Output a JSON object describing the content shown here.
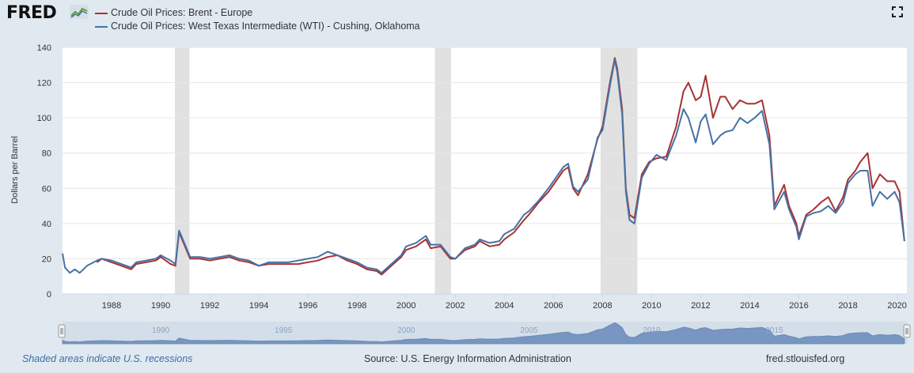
{
  "header": {
    "logo": "FRED",
    "legend": [
      {
        "label": "Crude Oil Prices: Brent - Europe",
        "color": "#a83232"
      },
      {
        "label": "Crude Oil Prices: West Texas Intermediate (WTI) - Cushing, Oklahoma",
        "color": "#4572a7"
      }
    ],
    "fullscreen_icon": "expand-icon"
  },
  "footer": {
    "recession_note": "Shaded areas indicate U.S. recessions",
    "source": "Source: U.S. Energy Information Administration",
    "site": "fred.stlouisfed.org"
  },
  "navigator": {
    "labels": [
      "1990",
      "1995",
      "2000",
      "2005",
      "2010",
      "2015"
    ]
  },
  "chart_data": {
    "type": "line",
    "title": "",
    "xlabel": "",
    "ylabel": "Dollars per Barrel",
    "xlim": [
      1986.0,
      2020.4
    ],
    "ylim": [
      0,
      140
    ],
    "yticks": [
      0,
      20,
      40,
      60,
      80,
      100,
      120,
      140
    ],
    "xticks": [
      "1988",
      "1990",
      "1992",
      "1994",
      "1996",
      "1998",
      "2000",
      "2002",
      "2004",
      "2006",
      "2008",
      "2010",
      "2012",
      "2014",
      "2016",
      "2018",
      "2020"
    ],
    "grid": "horizontal",
    "recessions": [
      [
        1990.58,
        1991.17
      ],
      [
        2001.17,
        2001.83
      ],
      [
        2007.92,
        2009.42
      ]
    ],
    "series": [
      {
        "name": "Crude Oil Prices: Brent - Europe",
        "color": "#a83232",
        "x": [
          1987.4,
          1987.6,
          1988.0,
          1988.4,
          1988.8,
          1989.0,
          1989.4,
          1989.8,
          1990.0,
          1990.4,
          1990.6,
          1990.75,
          1990.9,
          1991.2,
          1991.6,
          1992.0,
          1992.4,
          1992.8,
          1993.2,
          1993.6,
          1994.0,
          1994.4,
          1994.8,
          1995.2,
          1995.6,
          1996.0,
          1996.4,
          1996.8,
          1997.2,
          1997.6,
          1998.0,
          1998.4,
          1998.8,
          1999.0,
          1999.4,
          1999.8,
          2000.0,
          2000.4,
          2000.8,
          2001.0,
          2001.4,
          2001.8,
          2002.0,
          2002.4,
          2002.8,
          2003.0,
          2003.4,
          2003.8,
          2004.0,
          2004.4,
          2004.8,
          2005.0,
          2005.4,
          2005.8,
          2006.0,
          2006.4,
          2006.6,
          2006.8,
          2007.0,
          2007.4,
          2007.8,
          2008.0,
          2008.3,
          2008.5,
          2008.6,
          2008.8,
          2008.95,
          2009.1,
          2009.3,
          2009.6,
          2009.9,
          2010.2,
          2010.6,
          2011.0,
          2011.3,
          2011.5,
          2011.8,
          2012.0,
          2012.2,
          2012.5,
          2012.8,
          2013.0,
          2013.3,
          2013.6,
          2013.9,
          2014.2,
          2014.5,
          2014.8,
          2015.0,
          2015.4,
          2015.6,
          2015.9,
          2016.0,
          2016.3,
          2016.6,
          2016.9,
          2017.2,
          2017.5,
          2017.8,
          2018.0,
          2018.3,
          2018.5,
          2018.8,
          2019.0,
          2019.3,
          2019.6,
          2019.9,
          2020.1,
          2020.3
        ],
        "values": [
          18,
          20,
          18,
          16,
          14,
          17,
          18,
          19,
          21,
          17,
          16,
          35,
          30,
          20,
          20,
          19,
          20,
          21,
          19,
          18,
          16,
          17,
          17,
          17,
          17,
          18,
          19,
          21,
          22,
          19,
          17,
          14,
          13,
          11,
          16,
          21,
          25,
          27,
          31,
          26,
          27,
          20,
          20,
          25,
          27,
          30,
          27,
          28,
          31,
          35,
          42,
          45,
          52,
          58,
          62,
          70,
          72,
          60,
          56,
          68,
          88,
          95,
          120,
          134,
          128,
          105,
          60,
          45,
          43,
          68,
          75,
          77,
          78,
          95,
          115,
          120,
          110,
          112,
          124,
          100,
          112,
          112,
          105,
          110,
          108,
          108,
          110,
          90,
          50,
          62,
          50,
          40,
          33,
          45,
          48,
          52,
          55,
          47,
          55,
          65,
          70,
          75,
          80,
          60,
          68,
          64,
          64,
          58,
          30
        ]
      },
      {
        "name": "Crude Oil Prices: West Texas Intermediate (WTI) - Cushing, Oklahoma",
        "color": "#4572a7",
        "x": [
          1986.0,
          1986.1,
          1986.3,
          1986.5,
          1986.7,
          1987.0,
          1987.4,
          1987.6,
          1988.0,
          1988.4,
          1988.8,
          1989.0,
          1989.4,
          1989.8,
          1990.0,
          1990.4,
          1990.6,
          1990.75,
          1990.9,
          1991.2,
          1991.6,
          1992.0,
          1992.4,
          1992.8,
          1993.2,
          1993.6,
          1994.0,
          1994.4,
          1994.8,
          1995.2,
          1995.6,
          1996.0,
          1996.4,
          1996.8,
          1997.2,
          1997.6,
          1998.0,
          1998.4,
          1998.8,
          1999.0,
          1999.4,
          1999.8,
          2000.0,
          2000.4,
          2000.8,
          2001.0,
          2001.4,
          2001.8,
          2002.0,
          2002.4,
          2002.8,
          2003.0,
          2003.4,
          2003.8,
          2004.0,
          2004.4,
          2004.8,
          2005.0,
          2005.4,
          2005.8,
          2006.0,
          2006.4,
          2006.6,
          2006.8,
          2007.0,
          2007.4,
          2007.8,
          2008.0,
          2008.3,
          2008.5,
          2008.6,
          2008.8,
          2008.95,
          2009.1,
          2009.3,
          2009.6,
          2009.9,
          2010.2,
          2010.6,
          2011.0,
          2011.3,
          2011.5,
          2011.8,
          2012.0,
          2012.2,
          2012.5,
          2012.8,
          2013.0,
          2013.3,
          2013.6,
          2013.9,
          2014.2,
          2014.5,
          2014.8,
          2015.0,
          2015.4,
          2015.6,
          2015.9,
          2016.0,
          2016.3,
          2016.6,
          2016.9,
          2017.2,
          2017.5,
          2017.8,
          2018.0,
          2018.3,
          2018.5,
          2018.8,
          2019.0,
          2019.3,
          2019.6,
          2019.9,
          2020.1,
          2020.3
        ],
        "values": [
          23,
          15,
          12,
          14,
          12,
          16,
          19,
          20,
          19,
          17,
          15,
          18,
          19,
          20,
          22,
          19,
          17,
          36,
          31,
          21,
          21,
          20,
          21,
          22,
          20,
          19,
          16,
          18,
          18,
          18,
          19,
          20,
          21,
          24,
          22,
          20,
          18,
          15,
          14,
          12,
          17,
          22,
          27,
          29,
          33,
          28,
          28,
          21,
          20,
          26,
          28,
          31,
          29,
          30,
          34,
          37,
          45,
          47,
          53,
          60,
          64,
          72,
          74,
          61,
          58,
          65,
          89,
          93,
          118,
          133,
          126,
          102,
          58,
          42,
          40,
          66,
          74,
          79,
          76,
          90,
          105,
          100,
          86,
          98,
          102,
          85,
          90,
          92,
          93,
          100,
          97,
          100,
          104,
          85,
          48,
          58,
          48,
          38,
          31,
          44,
          46,
          47,
          50,
          46,
          52,
          63,
          68,
          70,
          70,
          50,
          58,
          54,
          58,
          52,
          30
        ]
      }
    ]
  }
}
